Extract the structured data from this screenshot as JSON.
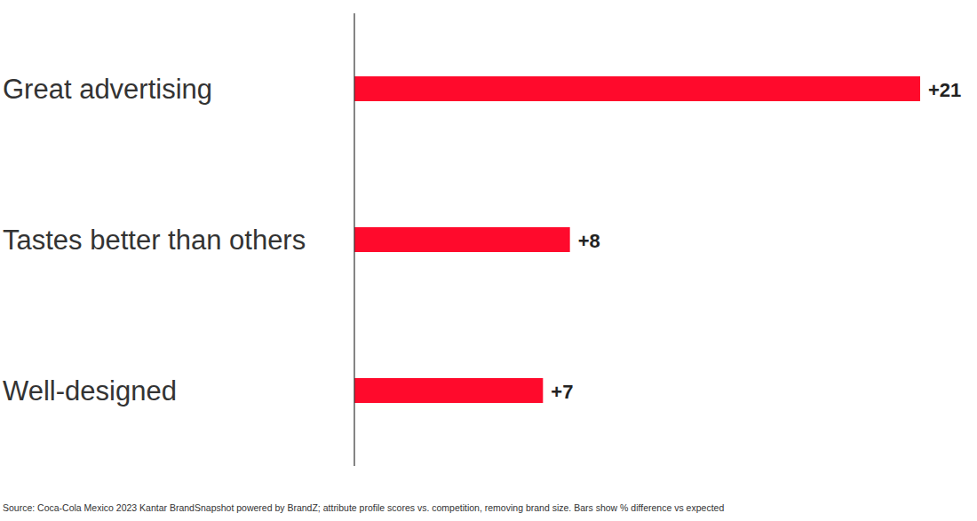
{
  "chart_data": {
    "type": "bar",
    "orientation": "horizontal",
    "categories": [
      "Great advertising",
      "Tastes better than others",
      "Well-designed"
    ],
    "values": [
      21,
      8,
      7
    ],
    "value_labels": [
      "+21",
      "+8",
      "+7"
    ],
    "data_labels": true,
    "color": "#ff0a2c",
    "xlim": [
      0,
      21
    ],
    "tick_labels": "y",
    "grid": false,
    "source": "Source: Coca-Cola Mexico 2023 Kantar BrandSnapshot powered by BrandZ; attribute profile scores vs. competition, removing brand size. Bars show % difference vs expected"
  }
}
